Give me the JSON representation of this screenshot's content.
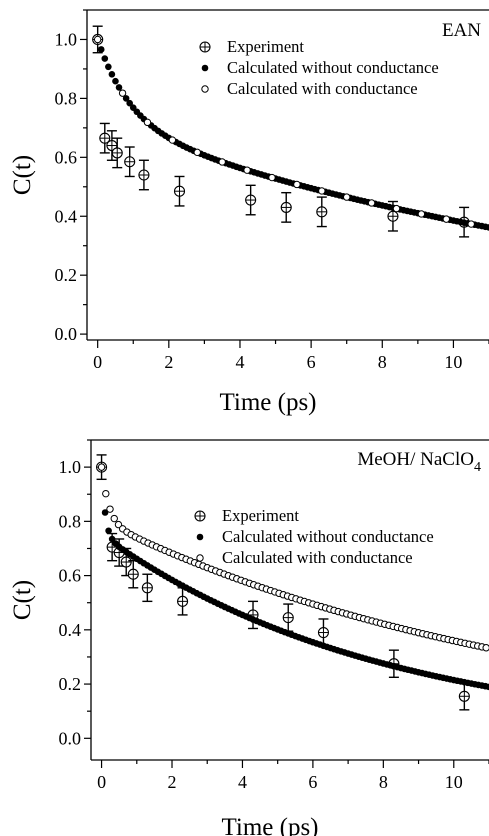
{
  "chart_data": [
    {
      "type": "scatter",
      "panel_label": "EAN",
      "panel_label_sub": "",
      "xlabel": "Time (ps)",
      "ylabel": "C(t)",
      "xlim": [
        -0.3,
        11
      ],
      "ylim": [
        -0.02,
        1.1
      ],
      "xticks": [
        0,
        2,
        4,
        6,
        8,
        10
      ],
      "yticks": [
        0.0,
        0.2,
        0.4,
        0.6,
        0.8,
        1.0
      ],
      "ytick_labels": [
        "0.0",
        "0.2",
        "0.4",
        "0.6",
        "0.8",
        "1.0"
      ],
      "grid": false,
      "legend_position": "top-right",
      "series": [
        {
          "name": "Experiment",
          "marker": "crossed-circle",
          "x": [
            0.0,
            0.2,
            0.4,
            0.55,
            0.9,
            1.3,
            2.3,
            4.3,
            5.3,
            6.3,
            8.3,
            10.3
          ],
          "y": [
            1.0,
            0.665,
            0.64,
            0.615,
            0.585,
            0.54,
            0.485,
            0.455,
            0.43,
            0.415,
            0.4,
            0.38
          ],
          "yerr": [
            0.045,
            0.05,
            0.05,
            0.05,
            0.05,
            0.05,
            0.05,
            0.05,
            0.05,
            0.05,
            0.05,
            0.05
          ]
        },
        {
          "name": "Calculated without conductance",
          "marker": "filled-circle",
          "function": {
            "a1": 0.28,
            "t1": 0.9,
            "a2": 0.72,
            "t2": 16.0,
            "x_start": 0.0,
            "x_end": 11.0,
            "step": 0.1
          }
        },
        {
          "name": "Calculated with conductance",
          "marker": "open-circle",
          "function": {
            "a1": 0.28,
            "t1": 0.9,
            "a2": 0.72,
            "t2": 16.0,
            "x_start": 0.0,
            "x_end": 11.0,
            "step": 0.7
          }
        }
      ]
    },
    {
      "type": "scatter",
      "panel_label": "MeOH/ NaClO",
      "panel_label_sub": "4",
      "xlabel": "Time (ps)",
      "ylabel": "C(t)",
      "xlim": [
        -0.3,
        11
      ],
      "ylim": [
        -0.08,
        1.1
      ],
      "xticks": [
        0,
        2,
        4,
        6,
        8,
        10
      ],
      "yticks": [
        0.0,
        0.2,
        0.4,
        0.6,
        0.8,
        1.0
      ],
      "ytick_labels": [
        "0.0",
        "0.2",
        "0.4",
        "0.6",
        "0.8",
        "1.0"
      ],
      "grid": false,
      "legend_position": "top-right",
      "series": [
        {
          "name": "Experiment",
          "marker": "crossed-circle",
          "x": [
            0.0,
            0.3,
            0.5,
            0.7,
            0.9,
            1.3,
            2.3,
            4.3,
            5.3,
            6.3,
            8.3,
            10.3
          ],
          "y": [
            1.0,
            0.705,
            0.685,
            0.65,
            0.605,
            0.555,
            0.505,
            0.455,
            0.445,
            0.39,
            0.275,
            0.155
          ],
          "yerr": [
            0.045,
            0.05,
            0.05,
            0.05,
            0.05,
            0.05,
            0.05,
            0.05,
            0.05,
            0.05,
            0.05,
            0.05
          ]
        },
        {
          "name": "Calculated without conductance",
          "marker": "filled-circle",
          "function": {
            "a1": 0.25,
            "t1": 0.1,
            "a2": 0.75,
            "t2": 8.0,
            "x_start": 0.0,
            "x_end": 11.0,
            "step": 0.1
          }
        },
        {
          "name": "Calculated with conductance",
          "marker": "open-circle",
          "function": {
            "a1": 0.2,
            "t1": 0.2,
            "a2": 0.8,
            "t2": 12.5,
            "x_start": 0.0,
            "x_end": 11.0,
            "step": 0.12
          }
        }
      ]
    }
  ]
}
